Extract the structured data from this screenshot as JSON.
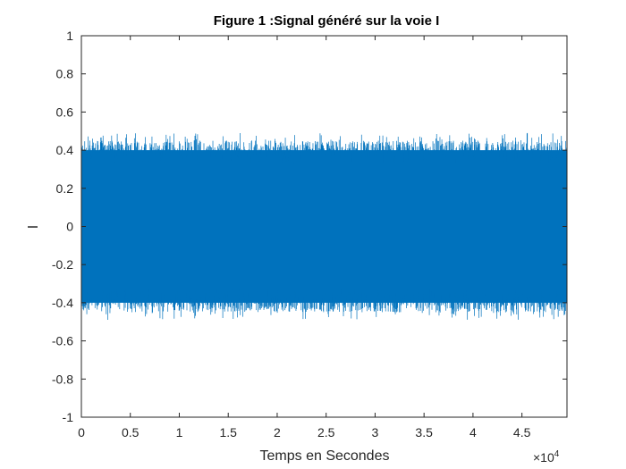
{
  "chart_data": {
    "type": "line",
    "title": "Figure 1 :Signal généré sur la voie I",
    "xlabel": "Temps en Secondes",
    "ylabel": "I",
    "xlim": [
      0,
      49600
    ],
    "ylim": [
      -1,
      1
    ],
    "x_ticks": [
      0,
      5000,
      10000,
      15000,
      20000,
      25000,
      30000,
      35000,
      40000,
      45000
    ],
    "x_tick_labels": [
      "0",
      "0.5",
      "1",
      "1.5",
      "2",
      "2.5",
      "3",
      "3.5",
      "4",
      "4.5"
    ],
    "x_exponent_label": "×10",
    "x_exponent_power": "4",
    "y_ticks": [
      -1,
      -0.8,
      -0.6,
      -0.4,
      -0.2,
      0,
      0.2,
      0.4,
      0.6,
      0.8,
      1
    ],
    "y_tick_labels": [
      "-1",
      "-0.8",
      "-0.6",
      "-0.4",
      "-0.2",
      "0",
      "0.2",
      "0.4",
      "0.6",
      "0.8",
      "1"
    ],
    "grid": false,
    "box": true,
    "series": [
      {
        "color": "#0072BD",
        "description_points": {
          "x_start": 0,
          "x_end": 49600,
          "typical_peak_amplitude": 0.45,
          "max_positive": 0.49,
          "max_negative": -0.49
        }
      }
    ]
  }
}
